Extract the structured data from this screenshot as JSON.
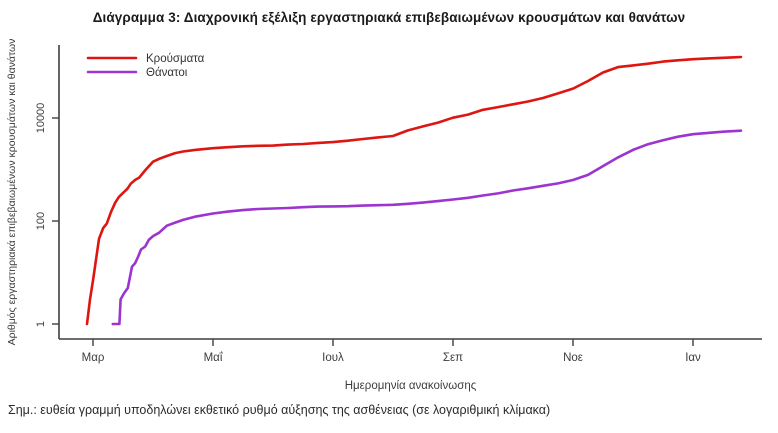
{
  "page": {
    "title": "Διάγραμμα 3: Διαχρονική εξέλιξη εργαστηριακά επιβεβαιωμένων κρουσμάτων και θανάτων",
    "footnote": "Σημ.: ευθεία γραμμή υποδηλώνει εκθετικό ρυθμό αύξησης της ασθένειας (σε λογαριθμική κλίμακα)"
  },
  "chart_data": {
    "type": "line",
    "y_scale": "log",
    "grid": "off",
    "legend": {
      "position": "top-left"
    },
    "x_axis": {
      "label": "Ημερομηνία ανακοίνωσης",
      "unit": "months since 2020-03-01",
      "ticks": [
        {
          "label": "Μαρ",
          "m": 0
        },
        {
          "label": "Μαΐ",
          "m": 2
        },
        {
          "label": "Ιουλ",
          "m": 4
        },
        {
          "label": "Σεπ",
          "m": 6
        },
        {
          "label": "Νοε",
          "m": 8
        },
        {
          "label": "Ιαν",
          "m": 10
        }
      ]
    },
    "y_axis": {
      "label": "Αριθμός εργαστηριακά επιβεβαιωμένων κρουσμάτων και θανάτων",
      "range": [
        1,
        300000
      ],
      "ticks": [
        {
          "label": "1",
          "value": 1
        },
        {
          "label": "100",
          "value": 100
        },
        {
          "label": "10000",
          "value": 10000
        }
      ]
    },
    "axis_color": "#3f3f3f",
    "tick_text_color": "#3d3d3d",
    "series": [
      {
        "key": "cases",
        "name": "Κρούσματα",
        "color": "#dd1612",
        "points": [
          [
            -0.1,
            1
          ],
          [
            -0.05,
            3
          ],
          [
            0,
            7
          ],
          [
            0.1,
            45
          ],
          [
            0.17,
            73
          ],
          [
            0.23,
            89
          ],
          [
            0.3,
            150
          ],
          [
            0.37,
            227
          ],
          [
            0.43,
            291
          ],
          [
            0.5,
            352
          ],
          [
            0.57,
            418
          ],
          [
            0.63,
            530
          ],
          [
            0.7,
            624
          ],
          [
            0.77,
            695
          ],
          [
            0.87,
            966
          ],
          [
            1,
            1415
          ],
          [
            1.1,
            1605
          ],
          [
            1.23,
            1832
          ],
          [
            1.37,
            2081
          ],
          [
            1.5,
            2235
          ],
          [
            1.7,
            2401
          ],
          [
            2,
            2591
          ],
          [
            2.25,
            2716
          ],
          [
            2.5,
            2819
          ],
          [
            2.75,
            2882
          ],
          [
            3,
            2917
          ],
          [
            3.25,
            3049
          ],
          [
            3.5,
            3134
          ],
          [
            3.75,
            3287
          ],
          [
            4,
            3409
          ],
          [
            4.25,
            3622
          ],
          [
            4.5,
            3910
          ],
          [
            4.75,
            4193
          ],
          [
            5,
            4477
          ],
          [
            5.25,
            5749
          ],
          [
            5.5,
            6858
          ],
          [
            5.75,
            8138
          ],
          [
            6,
            10134
          ],
          [
            6.25,
            11663
          ],
          [
            6.5,
            14400
          ],
          [
            6.75,
            16286
          ],
          [
            7,
            18475
          ],
          [
            7.25,
            20947
          ],
          [
            7.5,
            24450
          ],
          [
            7.75,
            29992
          ],
          [
            8,
            37196
          ],
          [
            8.25,
            52254
          ],
          [
            8.5,
            76403
          ],
          [
            8.75,
            97288
          ],
          [
            9,
            105271
          ],
          [
            9.25,
            113185
          ],
          [
            9.5,
            124534
          ],
          [
            9.75,
            131856
          ],
          [
            10,
            138850
          ],
          [
            10.25,
            143494
          ],
          [
            10.5,
            147860
          ],
          [
            10.65,
            150479
          ],
          [
            10.8,
            153226
          ]
        ]
      },
      {
        "key": "deaths",
        "name": "Θάνατοι",
        "color": "#9c34d0",
        "points": [
          [
            0.33,
            1
          ],
          [
            0.44,
            1
          ],
          [
            0.46,
            3
          ],
          [
            0.52,
            4
          ],
          [
            0.58,
            5
          ],
          [
            0.65,
            13
          ],
          [
            0.7,
            15
          ],
          [
            0.75,
            20
          ],
          [
            0.8,
            28
          ],
          [
            0.87,
            32
          ],
          [
            0.93,
            43
          ],
          [
            1,
            51
          ],
          [
            1.1,
            59
          ],
          [
            1.23,
            81
          ],
          [
            1.37,
            93
          ],
          [
            1.5,
            105
          ],
          [
            1.7,
            121
          ],
          [
            2,
            140
          ],
          [
            2.25,
            152
          ],
          [
            2.5,
            163
          ],
          [
            2.75,
            171
          ],
          [
            3,
            175
          ],
          [
            3.25,
            179
          ],
          [
            3.5,
            185
          ],
          [
            3.75,
            190
          ],
          [
            4,
            192
          ],
          [
            4.25,
            194
          ],
          [
            4.5,
            199
          ],
          [
            4.75,
            203
          ],
          [
            5,
            206
          ],
          [
            5.25,
            216
          ],
          [
            5.5,
            228
          ],
          [
            5.75,
            243
          ],
          [
            6,
            262
          ],
          [
            6.25,
            282
          ],
          [
            6.5,
            313
          ],
          [
            6.75,
            344
          ],
          [
            7,
            391
          ],
          [
            7.25,
            431
          ],
          [
            7.5,
            482
          ],
          [
            7.75,
            538
          ],
          [
            8,
            626
          ],
          [
            8.25,
            784
          ],
          [
            8.5,
            1165
          ],
          [
            8.75,
            1714
          ],
          [
            9,
            2406
          ],
          [
            9.25,
            3099
          ],
          [
            9.5,
            3687
          ],
          [
            9.75,
            4340
          ],
          [
            10,
            4838
          ],
          [
            10.25,
            5146
          ],
          [
            10.5,
            5421
          ],
          [
            10.65,
            5545
          ],
          [
            10.8,
            5671
          ]
        ]
      }
    ]
  }
}
